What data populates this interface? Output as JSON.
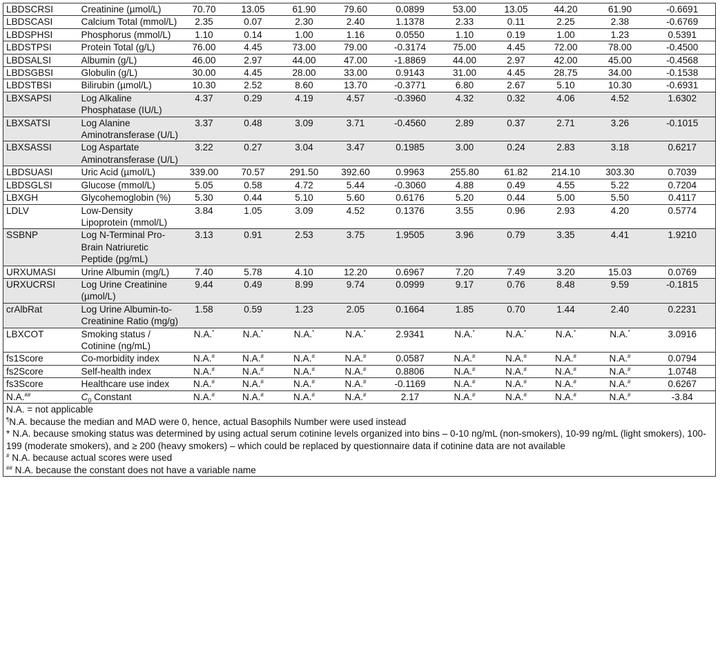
{
  "table": {
    "rows": [
      {
        "id": "LBDSCRSI",
        "name": "Creatinine (µmol/L)",
        "shaded": false,
        "values": [
          "70.70",
          "13.05",
          "61.90",
          "79.60",
          "0.0899",
          "53.00",
          "13.05",
          "44.20",
          "61.90",
          "-0.6691"
        ]
      },
      {
        "id": "LBDSCASI",
        "name": "Calcium Total (mmol/L)",
        "shaded": false,
        "values": [
          "2.35",
          "0.07",
          "2.30",
          "2.40",
          "1.1378",
          "2.33",
          "0.11",
          "2.25",
          "2.38",
          "-0.6769"
        ]
      },
      {
        "id": "LBDSPHSI",
        "name": "Phosphorus (mmol/L)",
        "shaded": false,
        "values": [
          "1.10",
          "0.14",
          "1.00",
          "1.16",
          "0.0550",
          "1.10",
          "0.19",
          "1.00",
          "1.23",
          "0.5391"
        ]
      },
      {
        "id": "LBDSTPSI",
        "name": "Protein Total (g/L)",
        "shaded": false,
        "values": [
          "76.00",
          "4.45",
          "73.00",
          "79.00",
          "-0.3174",
          "75.00",
          "4.45",
          "72.00",
          "78.00",
          "-0.4500"
        ]
      },
      {
        "id": "LBDSALSI",
        "name": "Albumin (g/L)",
        "shaded": false,
        "values": [
          "46.00",
          "2.97",
          "44.00",
          "47.00",
          "-1.8869",
          "44.00",
          "2.97",
          "42.00",
          "45.00",
          "-0.4568"
        ]
      },
      {
        "id": "LBDSGBSI",
        "name": "Globulin (g/L)",
        "shaded": false,
        "values": [
          "30.00",
          "4.45",
          "28.00",
          "33.00",
          "0.9143",
          "31.00",
          "4.45",
          "28.75",
          "34.00",
          "-0.1538"
        ]
      },
      {
        "id": "LBDSTBSI",
        "name": "Bilirubin (µmol/L)",
        "shaded": false,
        "values": [
          "10.30",
          "2.52",
          "8.60",
          "13.70",
          "-0.3771",
          "6.80",
          "2.67",
          "5.10",
          "10.30",
          "-0.6931"
        ]
      },
      {
        "id": "LBXSAPSI",
        "name": "Log Alkaline Phosphatase (IU/L)",
        "shaded": true,
        "values": [
          "4.37",
          "0.29",
          "4.19",
          "4.57",
          "-0.3960",
          "4.32",
          "0.32",
          "4.06",
          "4.52",
          "1.6302"
        ]
      },
      {
        "id": "LBXSATSI",
        "name": "Log Alanine Aminotransferase (U/L)",
        "shaded": true,
        "values": [
          "3.37",
          "0.48",
          "3.09",
          "3.71",
          "-0.4560",
          "2.89",
          "0.37",
          "2.71",
          "3.26",
          "-0.1015"
        ]
      },
      {
        "id": "LBXSASSI",
        "name": "Log Aspartate Aminotransferase (U/L)",
        "shaded": true,
        "values": [
          "3.22",
          "0.27",
          "3.04",
          "3.47",
          "0.1985",
          "3.00",
          "0.24",
          "2.83",
          "3.18",
          "0.6217"
        ]
      },
      {
        "id": "LBDSUASI",
        "name": "Uric Acid (µmol/L)",
        "shaded": false,
        "values": [
          "339.00",
          "70.57",
          "291.50",
          "392.60",
          "0.9963",
          "255.80",
          "61.82",
          "214.10",
          "303.30",
          "0.7039"
        ]
      },
      {
        "id": "LBDSGLSI",
        "name": "Glucose (mmol/L)",
        "shaded": false,
        "values": [
          "5.05",
          "0.58",
          "4.72",
          "5.44",
          "-0.3060",
          "4.88",
          "0.49",
          "4.55",
          "5.22",
          "0.7204"
        ]
      },
      {
        "id": "LBXGH",
        "name": "Glycohemoglobin (%)",
        "shaded": false,
        "values": [
          "5.30",
          "0.44",
          "5.10",
          "5.60",
          "0.6176",
          "5.20",
          "0.44",
          "5.00",
          "5.50",
          "0.4117"
        ]
      },
      {
        "id": "LDLV",
        "name": "Low-Density Lipoprotein (mmol/L)",
        "shaded": false,
        "values": [
          "3.84",
          "1.05",
          "3.09",
          "4.52",
          "0.1376",
          "3.55",
          "0.96",
          "2.93",
          "4.20",
          "0.5774"
        ]
      },
      {
        "id": "SSBNP",
        "name": "Log N-Terminal Pro-Brain Natriuretic Peptide (pg/mL)",
        "shaded": true,
        "values": [
          "3.13",
          "0.91",
          "2.53",
          "3.75",
          "1.9505",
          "3.96",
          "0.79",
          "3.35",
          "4.41",
          "1.9210"
        ]
      },
      {
        "id": "URXUMASI",
        "name": "Urine Albumin (mg/L)",
        "shaded": false,
        "values": [
          "7.40",
          "5.78",
          "4.10",
          "12.20",
          "0.6967",
          "7.20",
          "7.49",
          "3.20",
          "15.03",
          "0.0769"
        ]
      },
      {
        "id": "URXUCRSI",
        "name": "Log Urine Creatinine (µmol/L)",
        "shaded": true,
        "values": [
          "9.44",
          "0.49",
          "8.99",
          "9.74",
          "0.0999",
          "9.17",
          "0.76",
          "8.48",
          "9.59",
          "-0.1815"
        ]
      },
      {
        "id": "crAlbRat",
        "name": "Log Urine Albumin-to-Creatinine Ratio (mg/g)",
        "shaded": true,
        "values": [
          "1.58",
          "0.59",
          "1.23",
          "2.05",
          "0.1664",
          "1.85",
          "0.70",
          "1.44",
          "2.40",
          "0.2231"
        ]
      },
      {
        "id": "LBXCOT",
        "name": "Smoking status / Cotinine (ng/mL)",
        "shaded": false,
        "values": [
          "N.A.*",
          "N.A.*",
          "N.A.*",
          "N.A.*",
          "2.9341",
          "N.A.*",
          "N.A.*",
          "N.A.*",
          "N.A.*",
          "3.0916"
        ]
      },
      {
        "id": "fs1Score",
        "name": "Co-morbidity index",
        "shaded": false,
        "values": [
          "N.A.#",
          "N.A.#",
          "N.A.#",
          "N.A.#",
          "0.0587",
          "N.A.#",
          "N.A.#",
          "N.A.#",
          "N.A.#",
          "0.0794"
        ]
      },
      {
        "id": "fs2Score",
        "name": "Self-health index",
        "shaded": false,
        "values": [
          "N.A.#",
          "N.A.#",
          "N.A.#",
          "N.A.#",
          "0.8806",
          "N.A.#",
          "N.A.#",
          "N.A.#",
          "N.A.#",
          "1.0748"
        ]
      },
      {
        "id": "fs3Score",
        "name": "Healthcare use index",
        "shaded": false,
        "values": [
          "N.A.#",
          "N.A.#",
          "N.A.#",
          "N.A.#",
          "-0.1169",
          "N.A.#",
          "N.A.#",
          "N.A.#",
          "N.A.#",
          "0.6267"
        ]
      },
      {
        "id": "N.A.##",
        "name": "C₀ Constant",
        "shaded": false,
        "values": [
          "N.A.#",
          "N.A.#",
          "N.A.#",
          "N.A.#",
          "2.17",
          "N.A.#",
          "N.A.#",
          "N.A.#",
          "N.A.#",
          "-3.84"
        ]
      }
    ],
    "colors": {
      "shaded_row": "#e6e6e6",
      "border": "#333333"
    }
  },
  "footnotes": [
    {
      "mark": "",
      "text": "N.A. = not applicable"
    },
    {
      "mark": "¶",
      "text": "N.A. because the median and MAD were 0, hence, actual Basophils Number were used instead"
    },
    {
      "mark": "",
      "text": "* N.A. because smoking status was determined by using actual serum cotinine levels organized into bins – 0-10 ng/mL (non-smokers), 10-99 ng/mL (light smokers), 100-199 (moderate smokers), and ≥ 200 (heavy smokers) – which could be replaced by questionnaire data if cotinine data are not available"
    },
    {
      "mark": "#",
      "text": " N.A. because actual scores were used"
    },
    {
      "mark": "##",
      "text": " N.A. because the constant does not have a variable name"
    }
  ]
}
